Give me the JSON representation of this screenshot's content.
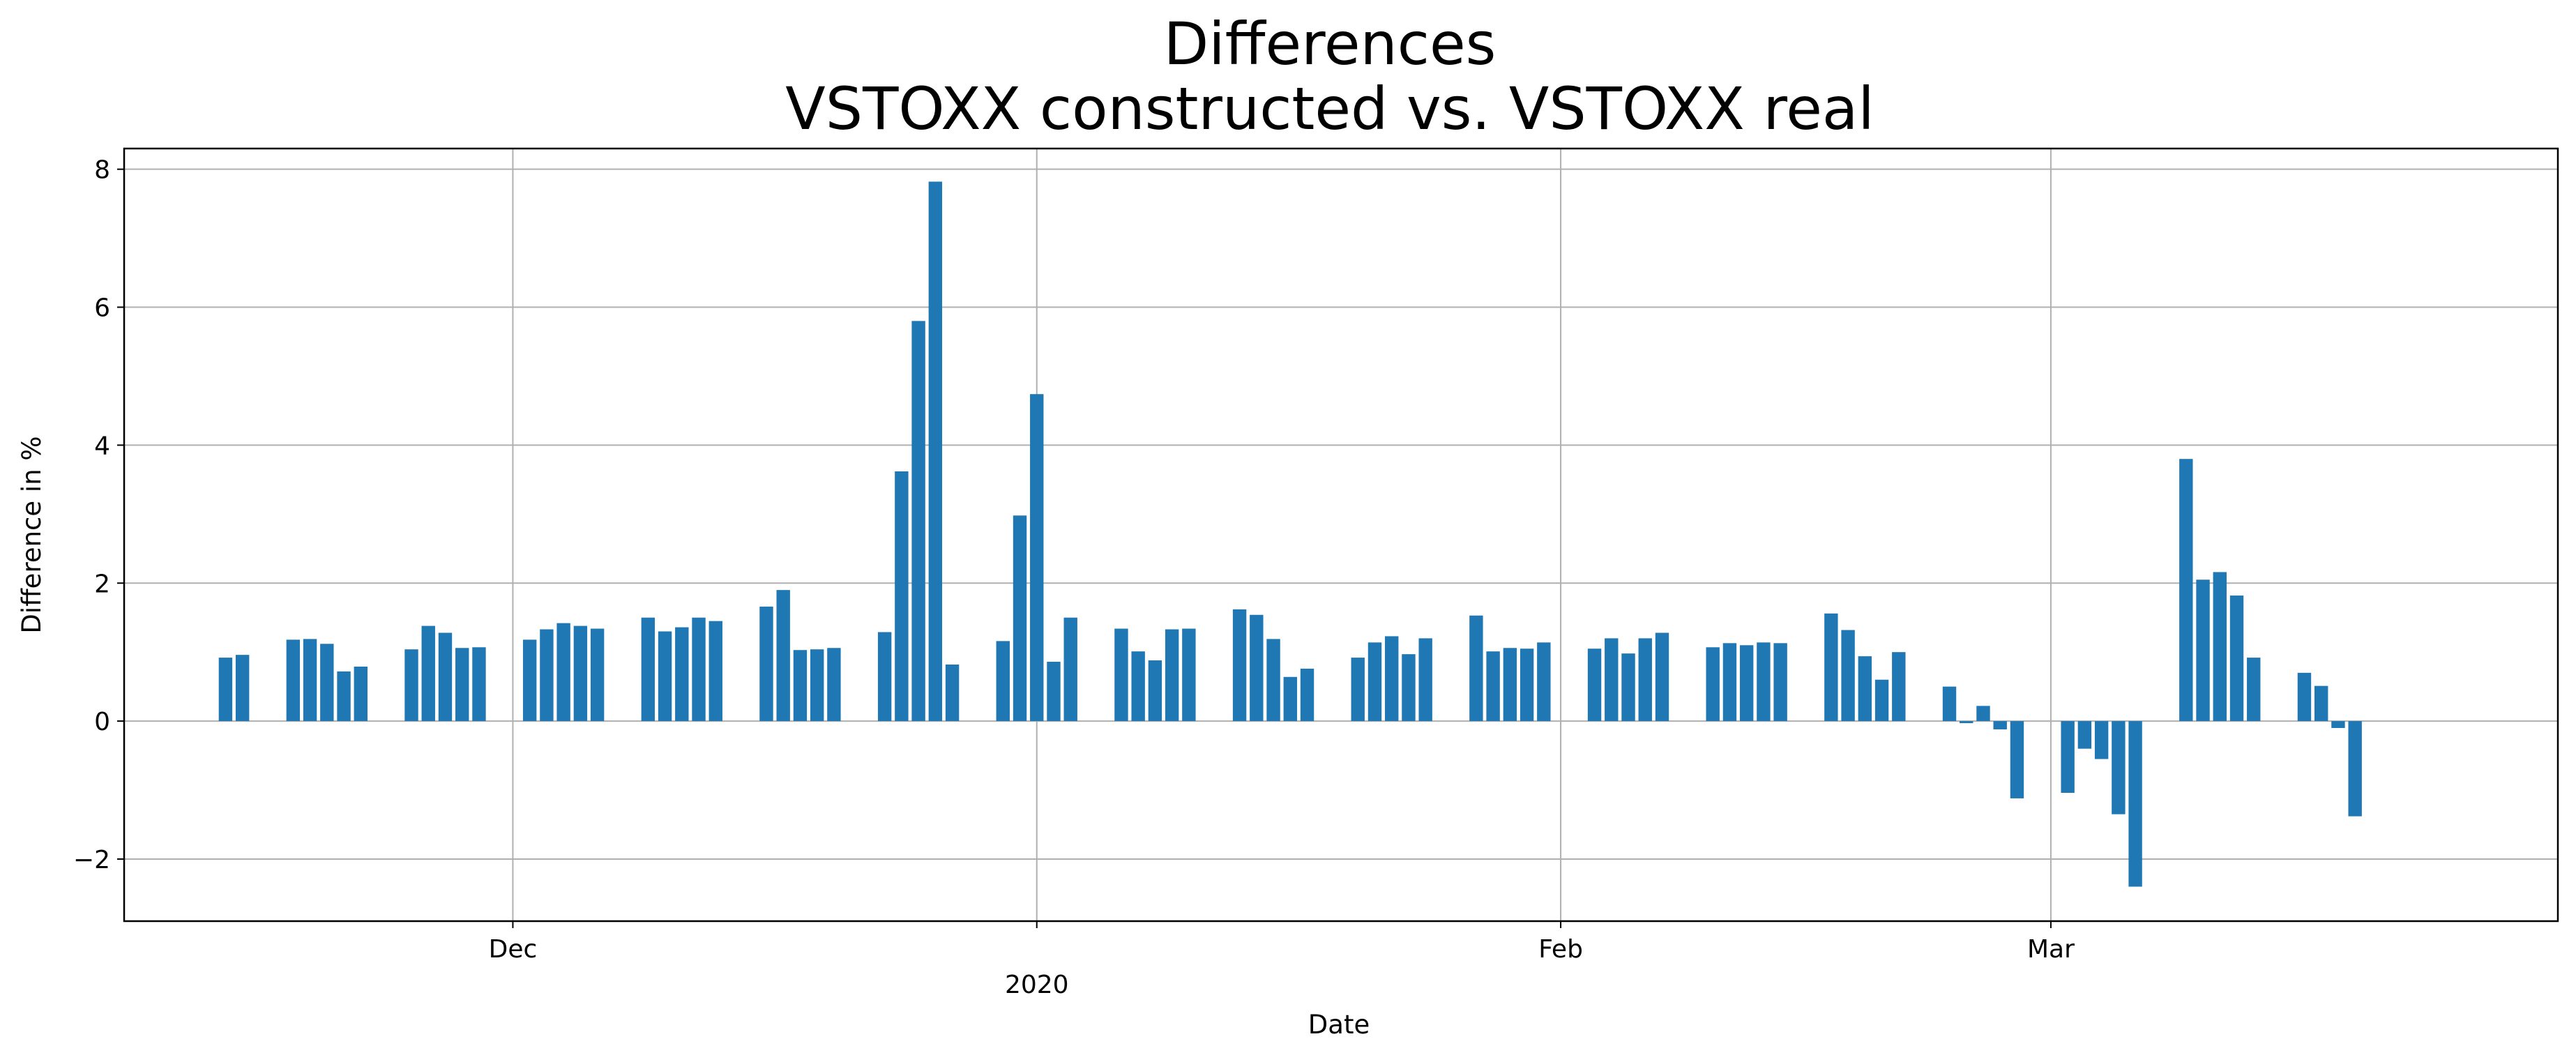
{
  "chart_data": {
    "type": "bar",
    "title_lines": [
      "Differences",
      "VSTOXX constructed vs. VSTOXX real"
    ],
    "xlabel": "Date",
    "ylabel": "Difference in %",
    "ylim": [
      -2.9,
      8.3
    ],
    "yticks": [
      -2,
      0,
      2,
      4,
      6,
      8
    ],
    "ytick_labels": [
      "−2",
      "0",
      "2",
      "4",
      "6",
      "8"
    ],
    "xlim": [
      "2019-11-08",
      "2020-03-31"
    ],
    "xticks": [
      {
        "date": "2019-12-01",
        "label": "Dec"
      },
      {
        "date": "2020-01-01",
        "label": "2020"
      },
      {
        "date": "2020-02-01",
        "label": "Feb"
      },
      {
        "date": "2020-03-01",
        "label": "Mar"
      }
    ],
    "xtick_sublabel": {
      "date": "2020-01-01",
      "label": "2020"
    },
    "grid": true,
    "bar_color": "#1f77b4",
    "dates": [
      "2019-11-14",
      "2019-11-15",
      "2019-11-18",
      "2019-11-19",
      "2019-11-20",
      "2019-11-21",
      "2019-11-22",
      "2019-11-25",
      "2019-11-26",
      "2019-11-27",
      "2019-11-28",
      "2019-11-29",
      "2019-12-02",
      "2019-12-03",
      "2019-12-04",
      "2019-12-05",
      "2019-12-06",
      "2019-12-09",
      "2019-12-10",
      "2019-12-11",
      "2019-12-12",
      "2019-12-13",
      "2019-12-16",
      "2019-12-17",
      "2019-12-18",
      "2019-12-19",
      "2019-12-20",
      "2019-12-23",
      "2019-12-24",
      "2019-12-25",
      "2019-12-26",
      "2019-12-27",
      "2019-12-30",
      "2019-12-31",
      "2020-01-01",
      "2020-01-02",
      "2020-01-03",
      "2020-01-06",
      "2020-01-07",
      "2020-01-08",
      "2020-01-09",
      "2020-01-10",
      "2020-01-13",
      "2020-01-14",
      "2020-01-15",
      "2020-01-16",
      "2020-01-17",
      "2020-01-20",
      "2020-01-21",
      "2020-01-22",
      "2020-01-23",
      "2020-01-24",
      "2020-01-27",
      "2020-01-28",
      "2020-01-29",
      "2020-01-30",
      "2020-01-31",
      "2020-02-03",
      "2020-02-04",
      "2020-02-05",
      "2020-02-06",
      "2020-02-07",
      "2020-02-10",
      "2020-02-11",
      "2020-02-12",
      "2020-02-13",
      "2020-02-14",
      "2020-02-17",
      "2020-02-18",
      "2020-02-19",
      "2020-02-20",
      "2020-02-21",
      "2020-02-24",
      "2020-02-25",
      "2020-02-26",
      "2020-02-27",
      "2020-02-28",
      "2020-03-02",
      "2020-03-03",
      "2020-03-04",
      "2020-03-05",
      "2020-03-06",
      "2020-03-09",
      "2020-03-10",
      "2020-03-11",
      "2020-03-12",
      "2020-03-13",
      "2020-03-16",
      "2020-03-17",
      "2020-03-18",
      "2020-03-19"
    ],
    "values": [
      0.92,
      0.96,
      1.18,
      1.19,
      1.12,
      0.72,
      0.79,
      1.04,
      1.38,
      1.28,
      1.06,
      1.07,
      1.18,
      1.33,
      1.42,
      1.38,
      1.34,
      1.5,
      1.3,
      1.36,
      1.5,
      1.45,
      1.66,
      1.9,
      1.03,
      1.04,
      1.06,
      1.29,
      3.62,
      5.8,
      7.82,
      0.82,
      1.16,
      2.98,
      4.74,
      0.86,
      1.5,
      1.34,
      1.01,
      0.88,
      1.33,
      1.34,
      1.62,
      1.54,
      1.19,
      0.64,
      0.76,
      0.92,
      1.14,
      1.23,
      0.97,
      1.2,
      1.53,
      1.01,
      1.06,
      1.05,
      1.14,
      1.05,
      1.2,
      0.98,
      1.2,
      1.28,
      1.07,
      1.13,
      1.1,
      1.14,
      1.13,
      1.56,
      1.32,
      0.94,
      0.6,
      1.0,
      0.5,
      -0.03,
      0.22,
      -0.12,
      -1.12,
      -1.04,
      -0.4,
      -0.55,
      -1.35,
      -2.4,
      3.8,
      2.05,
      2.16,
      1.82,
      0.92,
      0.7,
      0.51,
      -0.1,
      -1.38
    ]
  }
}
